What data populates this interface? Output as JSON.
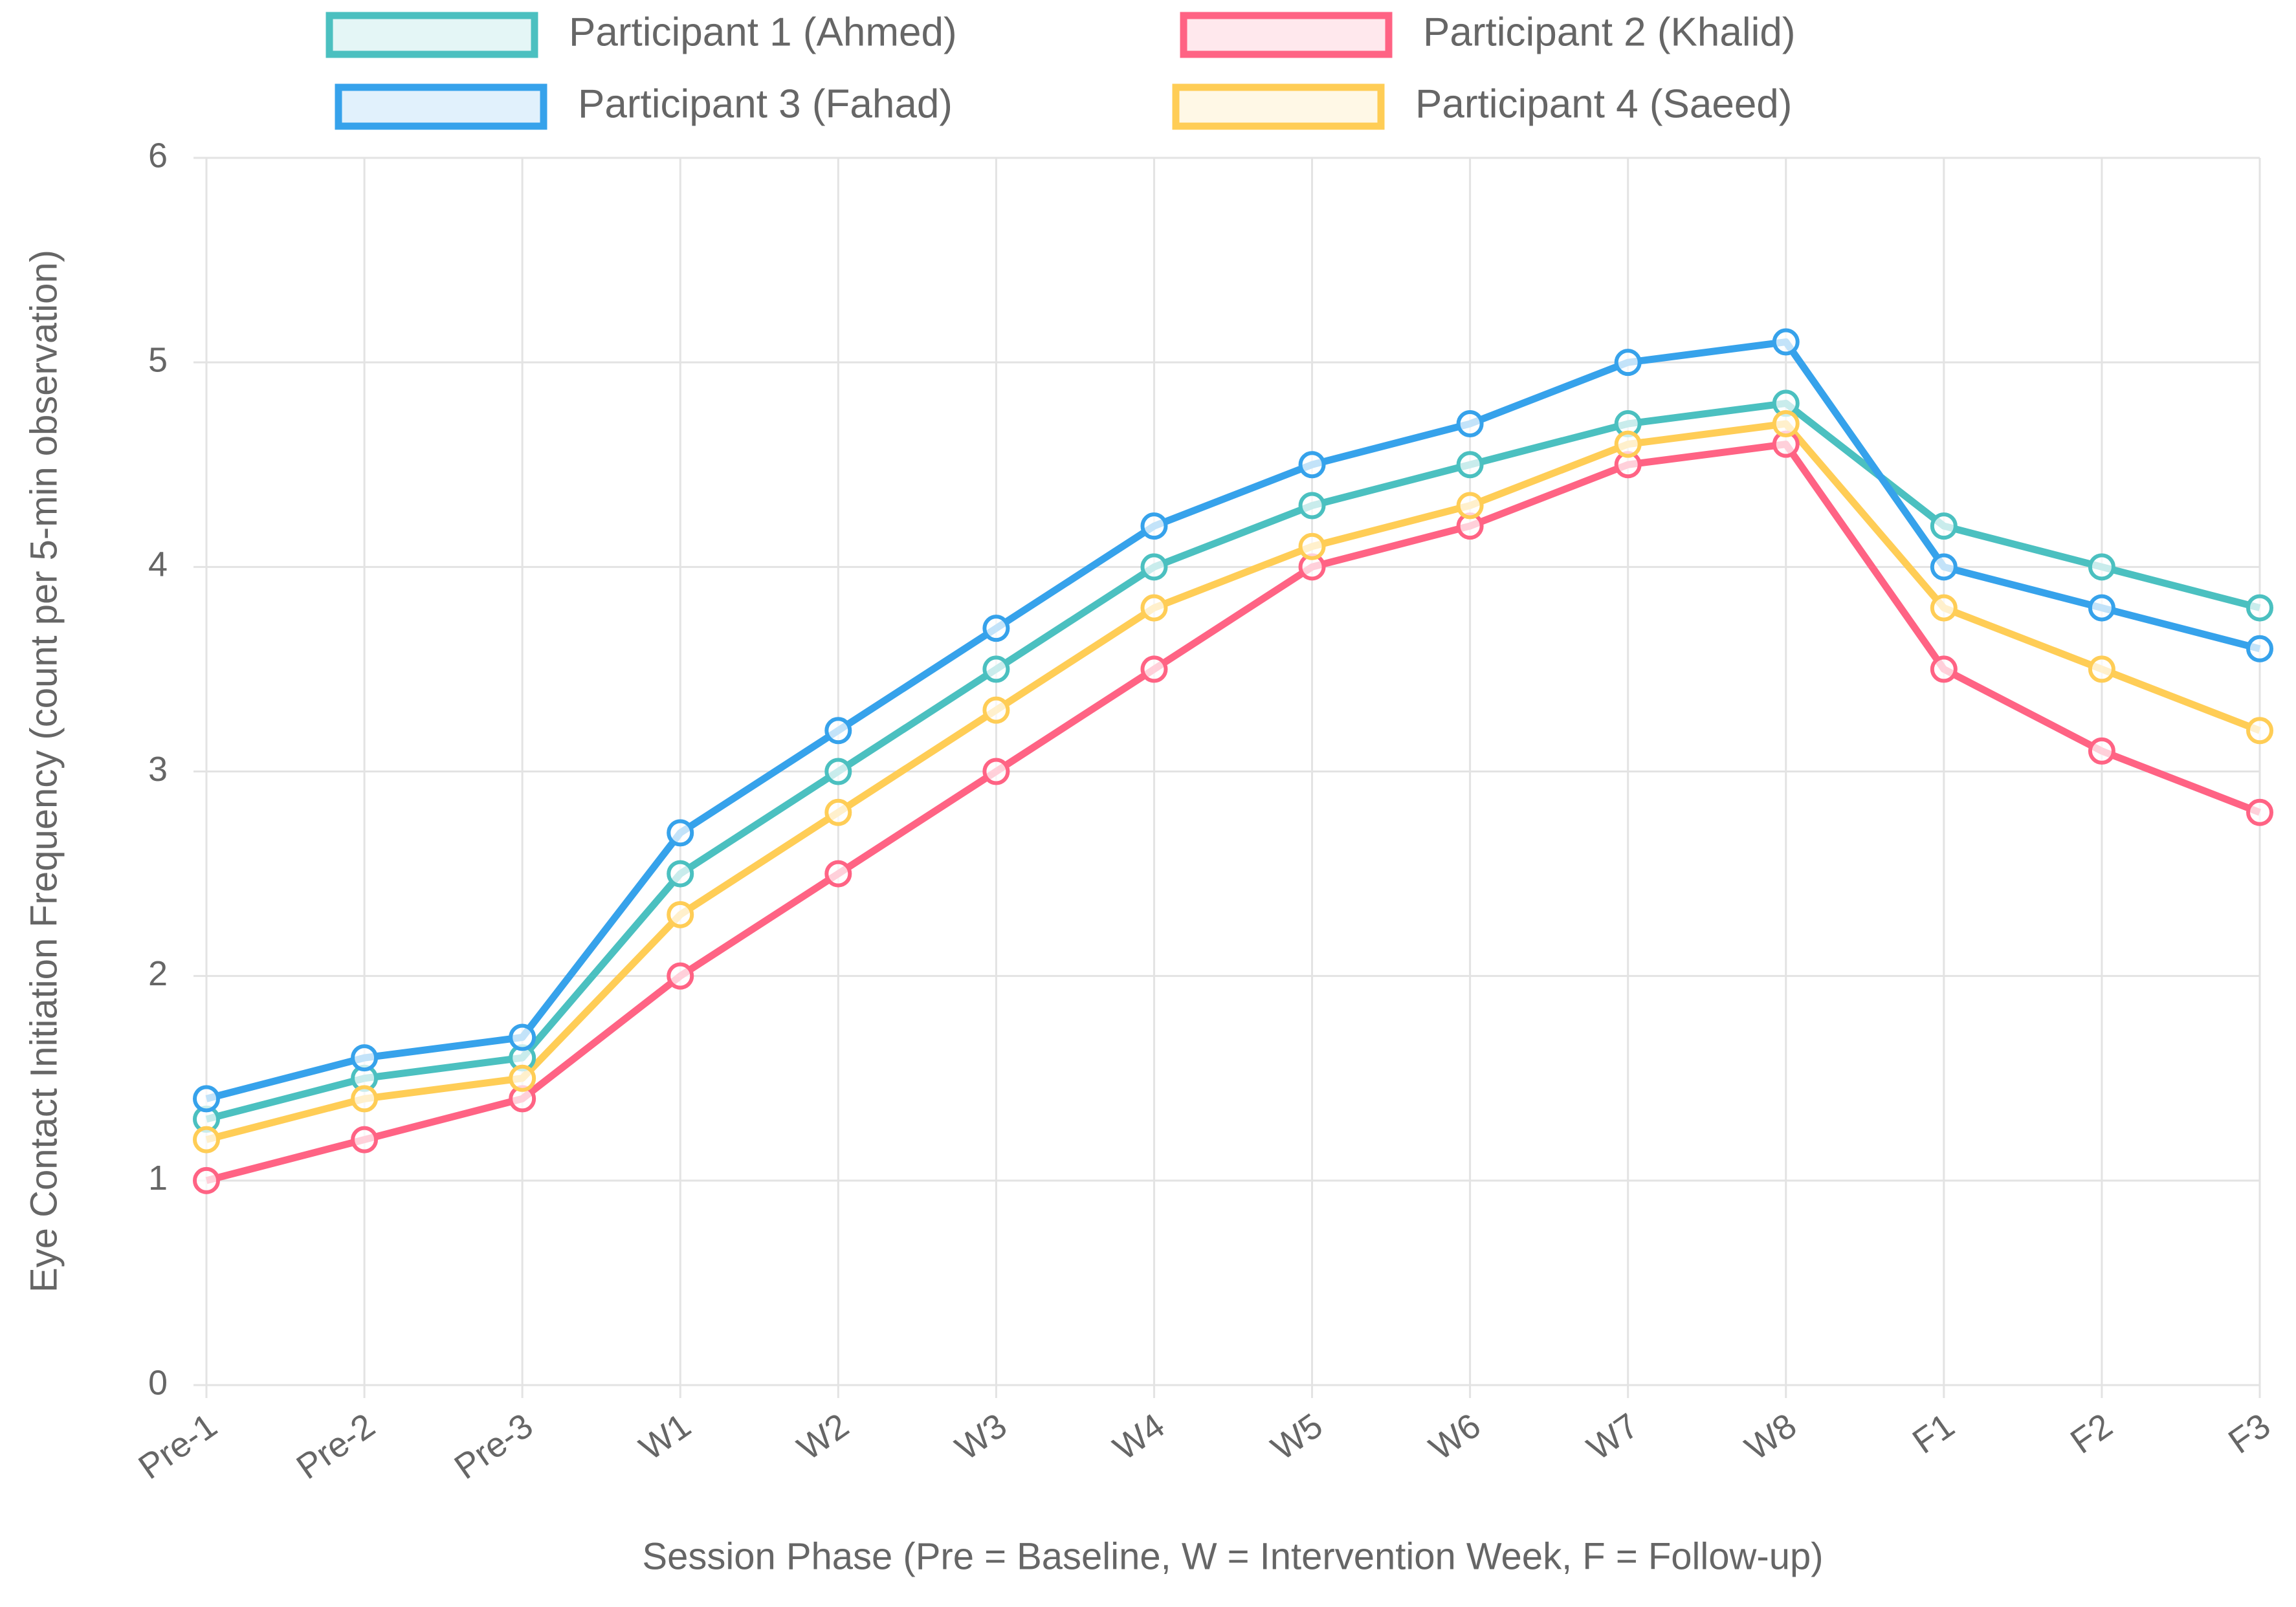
{
  "chart_data": {
    "type": "line",
    "x_label": "Session Phase (Pre = Baseline, W = Intervention Week, F = Follow-up)",
    "y_label": "Eye Contact Initiation Frequency (count per 5-min observation)",
    "categories": [
      "Pre-1",
      "Pre-2",
      "Pre-3",
      "W1",
      "W2",
      "W3",
      "W4",
      "W5",
      "W6",
      "W7",
      "W8",
      "F1",
      "F2",
      "F3"
    ],
    "series": [
      {
        "name": "Participant 1 (Ahmed)",
        "color": "#4bc0c0",
        "values": [
          1.3,
          1.5,
          1.6,
          2.5,
          3.0,
          3.5,
          4.0,
          4.3,
          4.5,
          4.7,
          4.8,
          4.2,
          4.0,
          3.8
        ]
      },
      {
        "name": "Participant 2 (Khalid)",
        "color": "#ff6384",
        "values": [
          1.0,
          1.2,
          1.4,
          2.0,
          2.5,
          3.0,
          3.5,
          4.0,
          4.2,
          4.5,
          4.6,
          3.5,
          3.1,
          2.8
        ]
      },
      {
        "name": "Participant 3 (Fahad)",
        "color": "#36a2eb",
        "values": [
          1.4,
          1.6,
          1.7,
          2.7,
          3.2,
          3.7,
          4.2,
          4.5,
          4.7,
          5.0,
          5.1,
          4.0,
          3.8,
          3.6
        ]
      },
      {
        "name": "Participant 4 (Saeed)",
        "color": "#ffcd56",
        "values": [
          1.2,
          1.4,
          1.5,
          2.3,
          2.8,
          3.3,
          3.8,
          4.1,
          4.3,
          4.6,
          4.7,
          3.8,
          3.5,
          3.2
        ]
      }
    ],
    "ylim": [
      0,
      6
    ],
    "yticks": [
      0,
      1,
      2,
      3,
      4,
      5,
      6
    ],
    "grid": true,
    "legend": "top"
  }
}
